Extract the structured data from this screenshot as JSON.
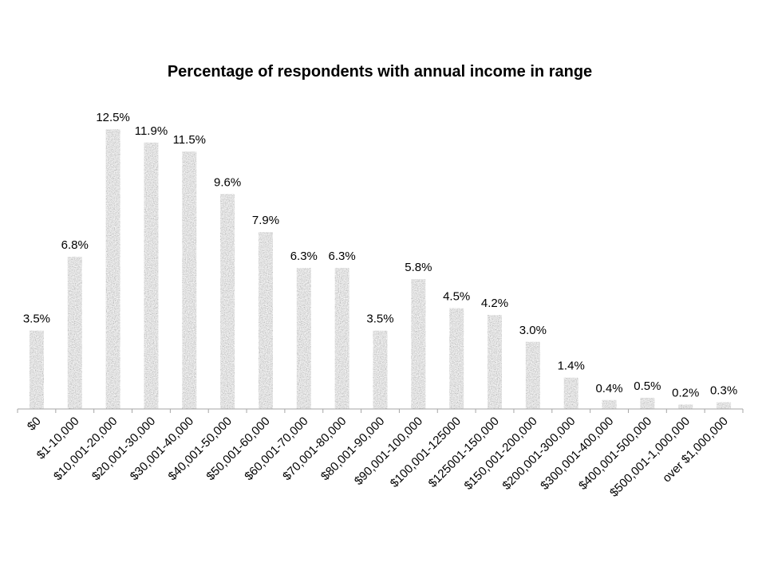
{
  "chart_data": {
    "type": "bar",
    "title": "Percentage of respondents with annual income in range",
    "xlabel": "",
    "ylabel": "",
    "ylim": [
      0,
      13
    ],
    "grid": false,
    "legend": "none",
    "bar_color": "#a9a9a9",
    "categories": [
      "$0",
      "$1-10,000",
      "$10,001-20,000",
      "$20,001-30,000",
      "$30,001-40,000",
      "$40,001-50,000",
      "$50,001-60,000",
      "$60,001-70,000",
      "$70,001-80,000",
      "$80,001-90,000",
      "$90,001-100,000",
      "$100,001-125000",
      "$125001-150,000",
      "$150,001-200,000",
      "$200,001-300,000",
      "$300,001-400,000",
      "$400,001-500,000",
      "$500,001-1,000,000",
      "over $1,000,000"
    ],
    "values": [
      3.5,
      6.8,
      12.5,
      11.9,
      11.5,
      9.6,
      7.9,
      6.3,
      6.3,
      3.5,
      5.8,
      4.5,
      4.2,
      3.0,
      1.4,
      0.4,
      0.5,
      0.2,
      0.3
    ],
    "data_labels": [
      "3.5%",
      "6.8%",
      "12.5%",
      "11.9%",
      "11.5%",
      "9.6%",
      "7.9%",
      "6.3%",
      "6.3%",
      "3.5%",
      "5.8%",
      "4.5%",
      "4.2%",
      "3.0%",
      "1.4%",
      "0.4%",
      "0.5%",
      "0.2%",
      "0.3%"
    ]
  }
}
